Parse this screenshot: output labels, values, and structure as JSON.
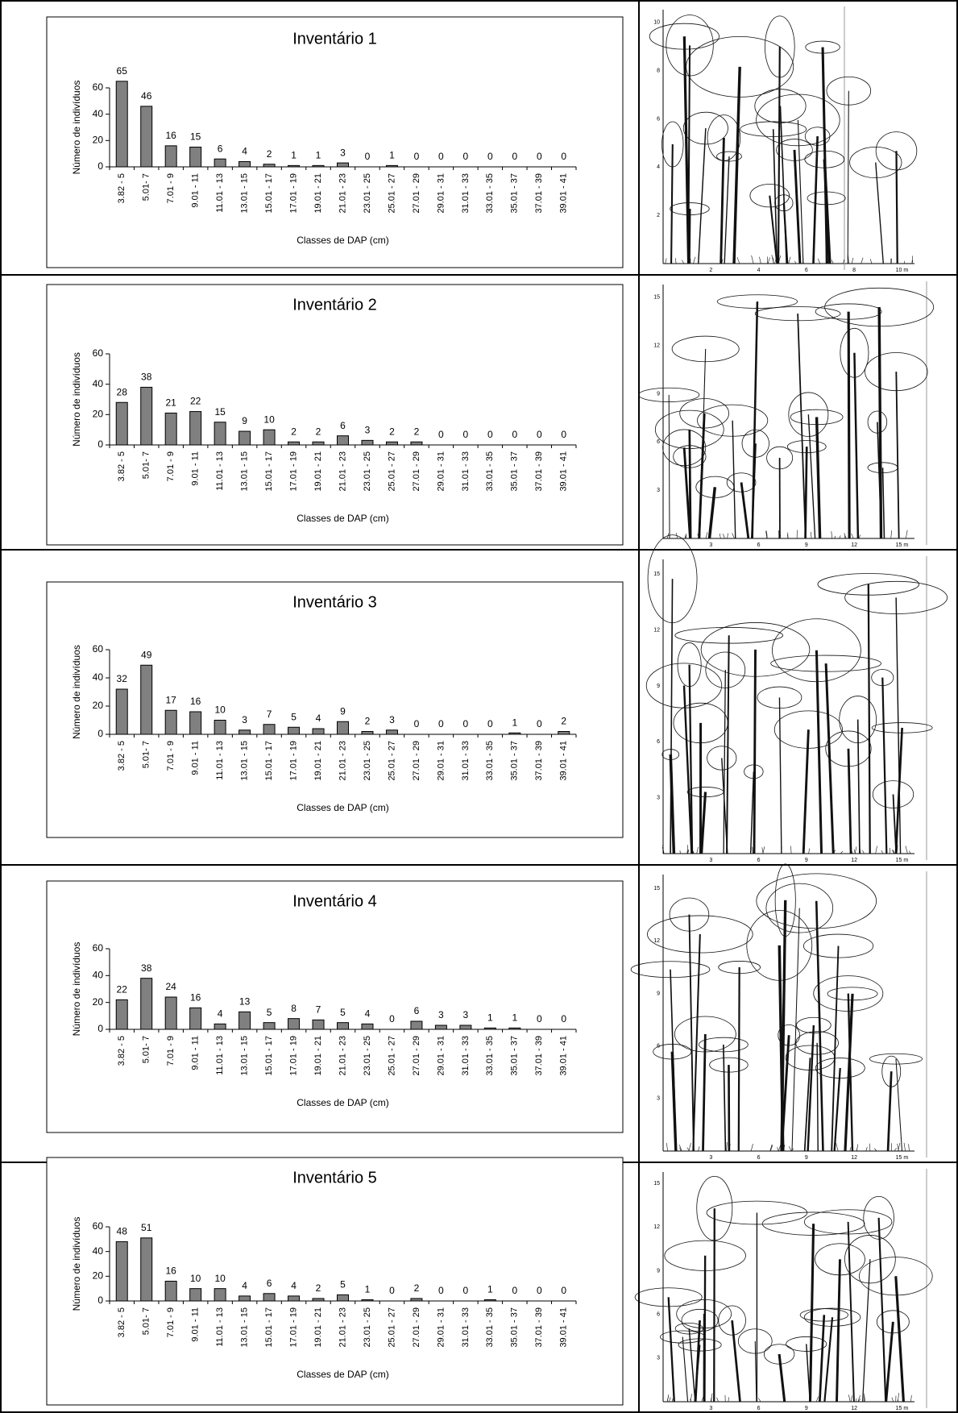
{
  "chart_data": [
    {
      "type": "bar",
      "title": "Inventário 1",
      "x_label": "Classes de DAP (cm)",
      "y_label": "Número de indivíduos",
      "categories": [
        "3.82 - 5",
        "5.01- 7",
        "7.01 - 9",
        "9.01 - 11",
        "11.01 - 13",
        "13.01 - 15",
        "15.01 - 17",
        "17.01 - 19",
        "19.01 - 21",
        "21.01 - 23",
        "23.01 - 25",
        "25.01 - 27",
        "27.01 - 29",
        "29.01 - 31",
        "31.01 - 33",
        "33.01 - 35",
        "35.01 - 37",
        "37.01 - 39",
        "39.01 - 41"
      ],
      "values": [
        65,
        46,
        16,
        15,
        6,
        4,
        2,
        1,
        1,
        3,
        0,
        1,
        0,
        0,
        0,
        0,
        0,
        0,
        0
      ],
      "color": "#808080",
      "ylim": [
        0,
        60
      ],
      "yticks": [
        0,
        20,
        40,
        60
      ]
    },
    {
      "type": "bar",
      "title": "Inventário 2",
      "x_label": "Classes de DAP (cm)",
      "y_label": "Número de indivíduos",
      "categories": [
        "3.82 - 5",
        "5.01- 7",
        "7.01 - 9",
        "9.01 - 11",
        "11.01 - 13",
        "13.01 - 15",
        "15.01 - 17",
        "17.01 - 19",
        "19.01 - 21",
        "21.01 - 23",
        "23.01 - 25",
        "25.01 - 27",
        "27.01 - 29",
        "29.01 - 31",
        "31.01 - 33",
        "33.01 - 35",
        "35.01 - 37",
        "37.01 - 39",
        "39.01 - 41"
      ],
      "values": [
        28,
        38,
        21,
        22,
        15,
        9,
        10,
        2,
        2,
        6,
        3,
        2,
        2,
        0,
        0,
        0,
        0,
        0,
        0
      ],
      "color": "#808080",
      "ylim": [
        0,
        60
      ],
      "yticks": [
        0,
        20,
        40,
        60
      ]
    },
    {
      "type": "bar",
      "title": "Inventário 3",
      "x_label": "Classes de DAP (cm)",
      "y_label": "Número de indivíduos",
      "categories": [
        "3.82 - 5",
        "5.01- 7",
        "7.01 - 9",
        "9.01 - 11",
        "11.01 - 13",
        "13.01 - 15",
        "15.01 - 17",
        "17.01 - 19",
        "19.01 - 21",
        "21.01 - 23",
        "23.01 - 25",
        "25.01 - 27",
        "27.01 - 29",
        "29.01 - 31",
        "31.01 - 33",
        "33.01 - 35",
        "35.01 - 37",
        "37.01 - 39",
        "39.01 - 41"
      ],
      "values": [
        32,
        49,
        17,
        16,
        10,
        3,
        7,
        5,
        4,
        9,
        2,
        3,
        0,
        0,
        0,
        0,
        1,
        0,
        2
      ],
      "color": "#808080",
      "ylim": [
        0,
        60
      ],
      "yticks": [
        0,
        20,
        40,
        60
      ]
    },
    {
      "type": "bar",
      "title": "Inventário 4",
      "x_label": "Classes de DAP (cm)",
      "y_label": "Número de indivíduos",
      "categories": [
        "3.82 - 5",
        "5.01- 7",
        "7.01 - 9",
        "9.01 - 11",
        "11.01 - 13",
        "13.01 - 15",
        "15.01 - 17",
        "17.01 - 19",
        "19.01 - 21",
        "21.01 - 23",
        "23.01 - 25",
        "25.01 - 27",
        "27.01 - 29",
        "29.01 - 31",
        "31.01 - 33",
        "33.01 - 35",
        "35.01 - 37",
        "37.01 - 39",
        "39.01 - 41"
      ],
      "values": [
        22,
        38,
        24,
        16,
        4,
        13,
        5,
        8,
        7,
        5,
        4,
        0,
        6,
        3,
        3,
        1,
        1,
        0,
        0
      ],
      "color": "#808080",
      "ylim": [
        0,
        60
      ],
      "yticks": [
        0,
        20,
        40,
        60
      ]
    },
    {
      "type": "bar",
      "title": "Inventário 5",
      "x_label": "Classes de DAP (cm)",
      "y_label": "Número de indivíduos",
      "categories": [
        "3.82 - 5",
        "5.01- 7",
        "7.01 - 9",
        "9.01 - 11",
        "11.01 - 13",
        "13.01 - 15",
        "15.01 - 17",
        "17.01 - 19",
        "19.01 - 21",
        "21.01 - 23",
        "23.01 - 25",
        "25.01 - 27",
        "27.01 - 29",
        "29.01 - 31",
        "31.01 - 33",
        "33.01 - 35",
        "35.01 - 37",
        "37.01 - 39",
        "39.01 - 41"
      ],
      "values": [
        48,
        51,
        16,
        10,
        10,
        4,
        6,
        4,
        2,
        5,
        1,
        0,
        2,
        0,
        0,
        1,
        0,
        0,
        0
      ],
      "color": "#808080",
      "ylim": [
        0,
        60
      ],
      "yticks": [
        0,
        20,
        40,
        60
      ]
    }
  ],
  "profile_drawings": [
    {
      "y_axis": [
        "2",
        "4",
        "6",
        "8",
        "10"
      ],
      "x_axis": [
        "2",
        "4",
        "6",
        "8",
        "10 m"
      ]
    },
    {
      "y_axis": [
        "3",
        "6",
        "9",
        "12",
        "15"
      ],
      "x_axis": [
        "3",
        "6",
        "9",
        "12",
        "15 m"
      ]
    },
    {
      "y_axis": [
        "3",
        "6",
        "9",
        "12",
        "15"
      ],
      "x_axis": [
        "3",
        "6",
        "9",
        "12",
        "15 m"
      ]
    },
    {
      "y_axis": [
        "3",
        "6",
        "9",
        "12",
        "15"
      ],
      "x_axis": [
        "3",
        "6",
        "9",
        "12",
        "15 m"
      ]
    },
    {
      "y_axis": [
        "3",
        "6",
        "9",
        "12",
        "15"
      ],
      "x_axis": [
        "3",
        "6",
        "9",
        "12",
        "15 m"
      ]
    }
  ]
}
